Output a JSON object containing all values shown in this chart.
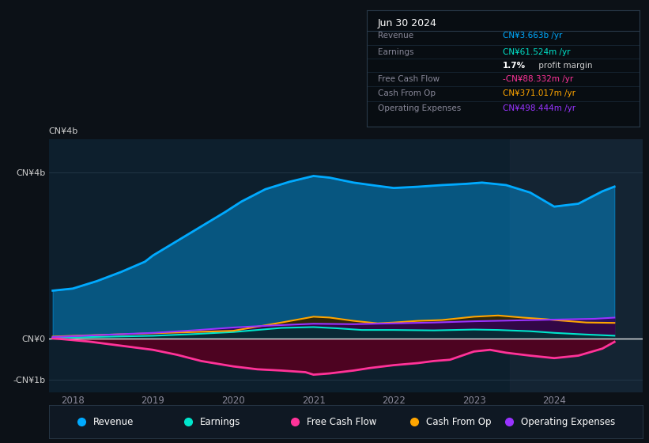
{
  "bg_color": "#0c1117",
  "chart_bg": "#0d1f2d",
  "title": "Jun 30 2024",
  "yticks_labels": [
    "CN¥4b",
    "CN¥0",
    "-CN¥1b"
  ],
  "yticks_values": [
    4000000000.0,
    0,
    -1000000000.0
  ],
  "xticks": [
    2018,
    2019,
    2020,
    2021,
    2022,
    2023,
    2024
  ],
  "ylim": [
    -1300000000.0,
    4800000000.0
  ],
  "xlim": [
    2017.7,
    2025.1
  ],
  "colors": {
    "revenue": "#00aaff",
    "earnings": "#00e5cc",
    "free_cash_flow": "#ff3399",
    "cash_from_op": "#ffa500",
    "operating_expenses": "#9933ff"
  },
  "legend": [
    {
      "label": "Revenue",
      "color": "#00aaff"
    },
    {
      "label": "Earnings",
      "color": "#00e5cc"
    },
    {
      "label": "Free Cash Flow",
      "color": "#ff3399"
    },
    {
      "label": "Cash From Op",
      "color": "#ffa500"
    },
    {
      "label": "Operating Expenses",
      "color": "#9933ff"
    }
  ],
  "revenue_x": [
    2017.75,
    2018.0,
    2018.3,
    2018.6,
    2018.9,
    2019.0,
    2019.3,
    2019.6,
    2019.9,
    2020.1,
    2020.4,
    2020.7,
    2021.0,
    2021.2,
    2021.5,
    2021.8,
    2022.0,
    2022.3,
    2022.6,
    2022.9,
    2023.1,
    2023.4,
    2023.7,
    2024.0,
    2024.3,
    2024.6,
    2024.75
  ],
  "revenue_y": [
    1150000000.0,
    1200000000.0,
    1380000000.0,
    1600000000.0,
    1850000000.0,
    2000000000.0,
    2350000000.0,
    2700000000.0,
    3050000000.0,
    3300000000.0,
    3600000000.0,
    3780000000.0,
    3920000000.0,
    3880000000.0,
    3760000000.0,
    3680000000.0,
    3630000000.0,
    3660000000.0,
    3700000000.0,
    3730000000.0,
    3760000000.0,
    3700000000.0,
    3520000000.0,
    3180000000.0,
    3250000000.0,
    3550000000.0,
    3663000000.0
  ],
  "earnings_x": [
    2017.75,
    2018.0,
    2018.5,
    2019.0,
    2019.5,
    2020.0,
    2020.3,
    2020.6,
    2021.0,
    2021.3,
    2021.6,
    2022.0,
    2022.5,
    2023.0,
    2023.3,
    2023.7,
    2024.0,
    2024.4,
    2024.75
  ],
  "earnings_y": [
    10000000.0,
    20000000.0,
    40000000.0,
    60000000.0,
    100000000.0,
    150000000.0,
    200000000.0,
    250000000.0,
    270000000.0,
    240000000.0,
    200000000.0,
    200000000.0,
    190000000.0,
    210000000.0,
    200000000.0,
    170000000.0,
    130000000.0,
    90000000.0,
    61500000.0
  ],
  "fcf_x": [
    2017.75,
    2018.2,
    2018.6,
    2019.0,
    2019.3,
    2019.6,
    2020.0,
    2020.3,
    2020.6,
    2020.9,
    2021.0,
    2021.2,
    2021.5,
    2021.7,
    2022.0,
    2022.3,
    2022.5,
    2022.7,
    2023.0,
    2023.2,
    2023.4,
    2023.7,
    2024.0,
    2024.3,
    2024.6,
    2024.75
  ],
  "fcf_y": [
    0.0,
    -80000000.0,
    -180000000.0,
    -280000000.0,
    -400000000.0,
    -550000000.0,
    -680000000.0,
    -750000000.0,
    -780000000.0,
    -820000000.0,
    -880000000.0,
    -850000000.0,
    -780000000.0,
    -720000000.0,
    -650000000.0,
    -600000000.0,
    -550000000.0,
    -520000000.0,
    -320000000.0,
    -280000000.0,
    -350000000.0,
    -420000000.0,
    -480000000.0,
    -420000000.0,
    -250000000.0,
    -88300000.0
  ],
  "cashfromop_x": [
    2017.75,
    2018.0,
    2018.5,
    2019.0,
    2019.5,
    2020.0,
    2020.3,
    2020.6,
    2021.0,
    2021.2,
    2021.5,
    2021.8,
    2022.0,
    2022.3,
    2022.6,
    2023.0,
    2023.3,
    2023.6,
    2023.9,
    2024.0,
    2024.4,
    2024.75
  ],
  "cashfromop_y": [
    40000000.0,
    60000000.0,
    90000000.0,
    120000000.0,
    150000000.0,
    180000000.0,
    280000000.0,
    380000000.0,
    520000000.0,
    500000000.0,
    420000000.0,
    360000000.0,
    380000000.0,
    420000000.0,
    440000000.0,
    520000000.0,
    550000000.0,
    500000000.0,
    460000000.0,
    440000000.0,
    380000000.0,
    371000000.0
  ],
  "opex_x": [
    2017.75,
    2018.0,
    2018.5,
    2019.0,
    2019.5,
    2020.0,
    2020.5,
    2021.0,
    2021.5,
    2022.0,
    2022.5,
    2023.0,
    2023.5,
    2024.0,
    2024.5,
    2024.75
  ],
  "opex_y": [
    30000000.0,
    50000000.0,
    90000000.0,
    130000000.0,
    190000000.0,
    260000000.0,
    310000000.0,
    350000000.0,
    340000000.0,
    360000000.0,
    380000000.0,
    410000000.0,
    430000000.0,
    450000000.0,
    470000000.0,
    498000000.0
  ],
  "info_rows": [
    {
      "label": "Revenue",
      "value": "CN¥3.663b /yr",
      "value_color": "#00aaff"
    },
    {
      "label": "Earnings",
      "value": "CN¥61.524m /yr",
      "value_color": "#00e5cc"
    },
    {
      "label": "",
      "value": "1.7%",
      "value_color": "#ffffff",
      "suffix": " profit margin",
      "suffix_color": "#cccccc"
    },
    {
      "label": "Free Cash Flow",
      "value": "-CN¥88.332m /yr",
      "value_color": "#ff3399"
    },
    {
      "label": "Cash From Op",
      "value": "CN¥371.017m /yr",
      "value_color": "#ffa500"
    },
    {
      "label": "Operating Expenses",
      "value": "CN¥498.444m /yr",
      "value_color": "#9933ff"
    }
  ]
}
